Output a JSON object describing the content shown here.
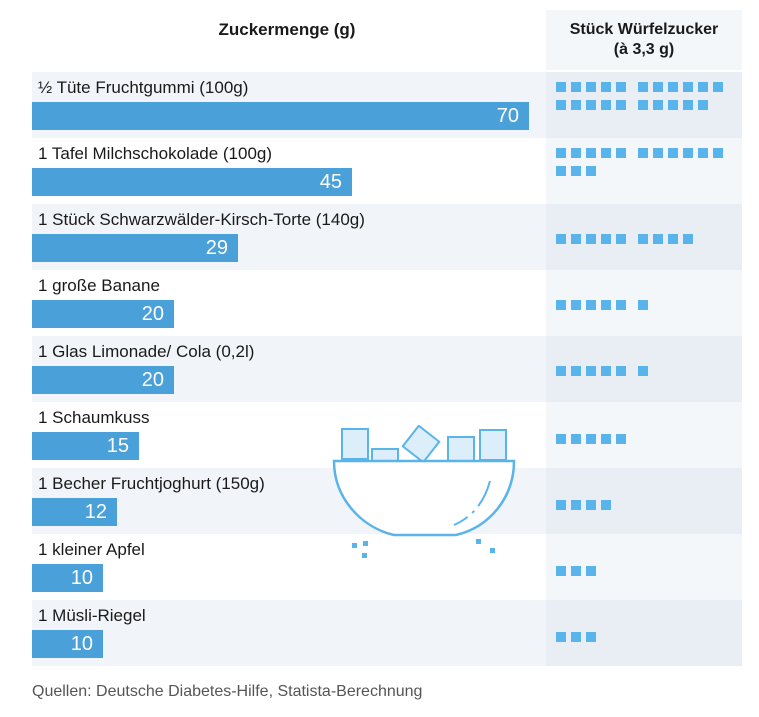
{
  "chart_data": {
    "type": "bar",
    "header_left": "Zuckermenge (g)",
    "header_right_line1": "Stück Würfelzucker",
    "header_right_line2": "(à 3,3 g)",
    "categories": [
      "½ Tüte Fruchtgummi (100g)",
      "1 Tafel Milchschokolade (100g)",
      "1 Stück Schwarzwälder-Kirsch-Torte (140g)",
      "1 große Banane",
      "1 Glas Limonade/ Cola (0,2l)",
      "1 Schaumkuss",
      "1 Becher Fruchtjoghurt (150g)",
      "1 kleiner Apfel",
      "1 Müsli-Riegel"
    ],
    "values": [
      70,
      45,
      29,
      20,
      20,
      15,
      12,
      10,
      10
    ],
    "sugar_cubes": [
      21,
      14,
      9,
      6,
      6,
      5,
      4,
      3,
      3
    ],
    "xlim": [
      0,
      70
    ],
    "bar_color": "#4aa0d8",
    "cube_color": "#5ab4ec"
  },
  "source": "Quellen: Deutsche Diabetes-Hilfe, Statista-Berechnung"
}
